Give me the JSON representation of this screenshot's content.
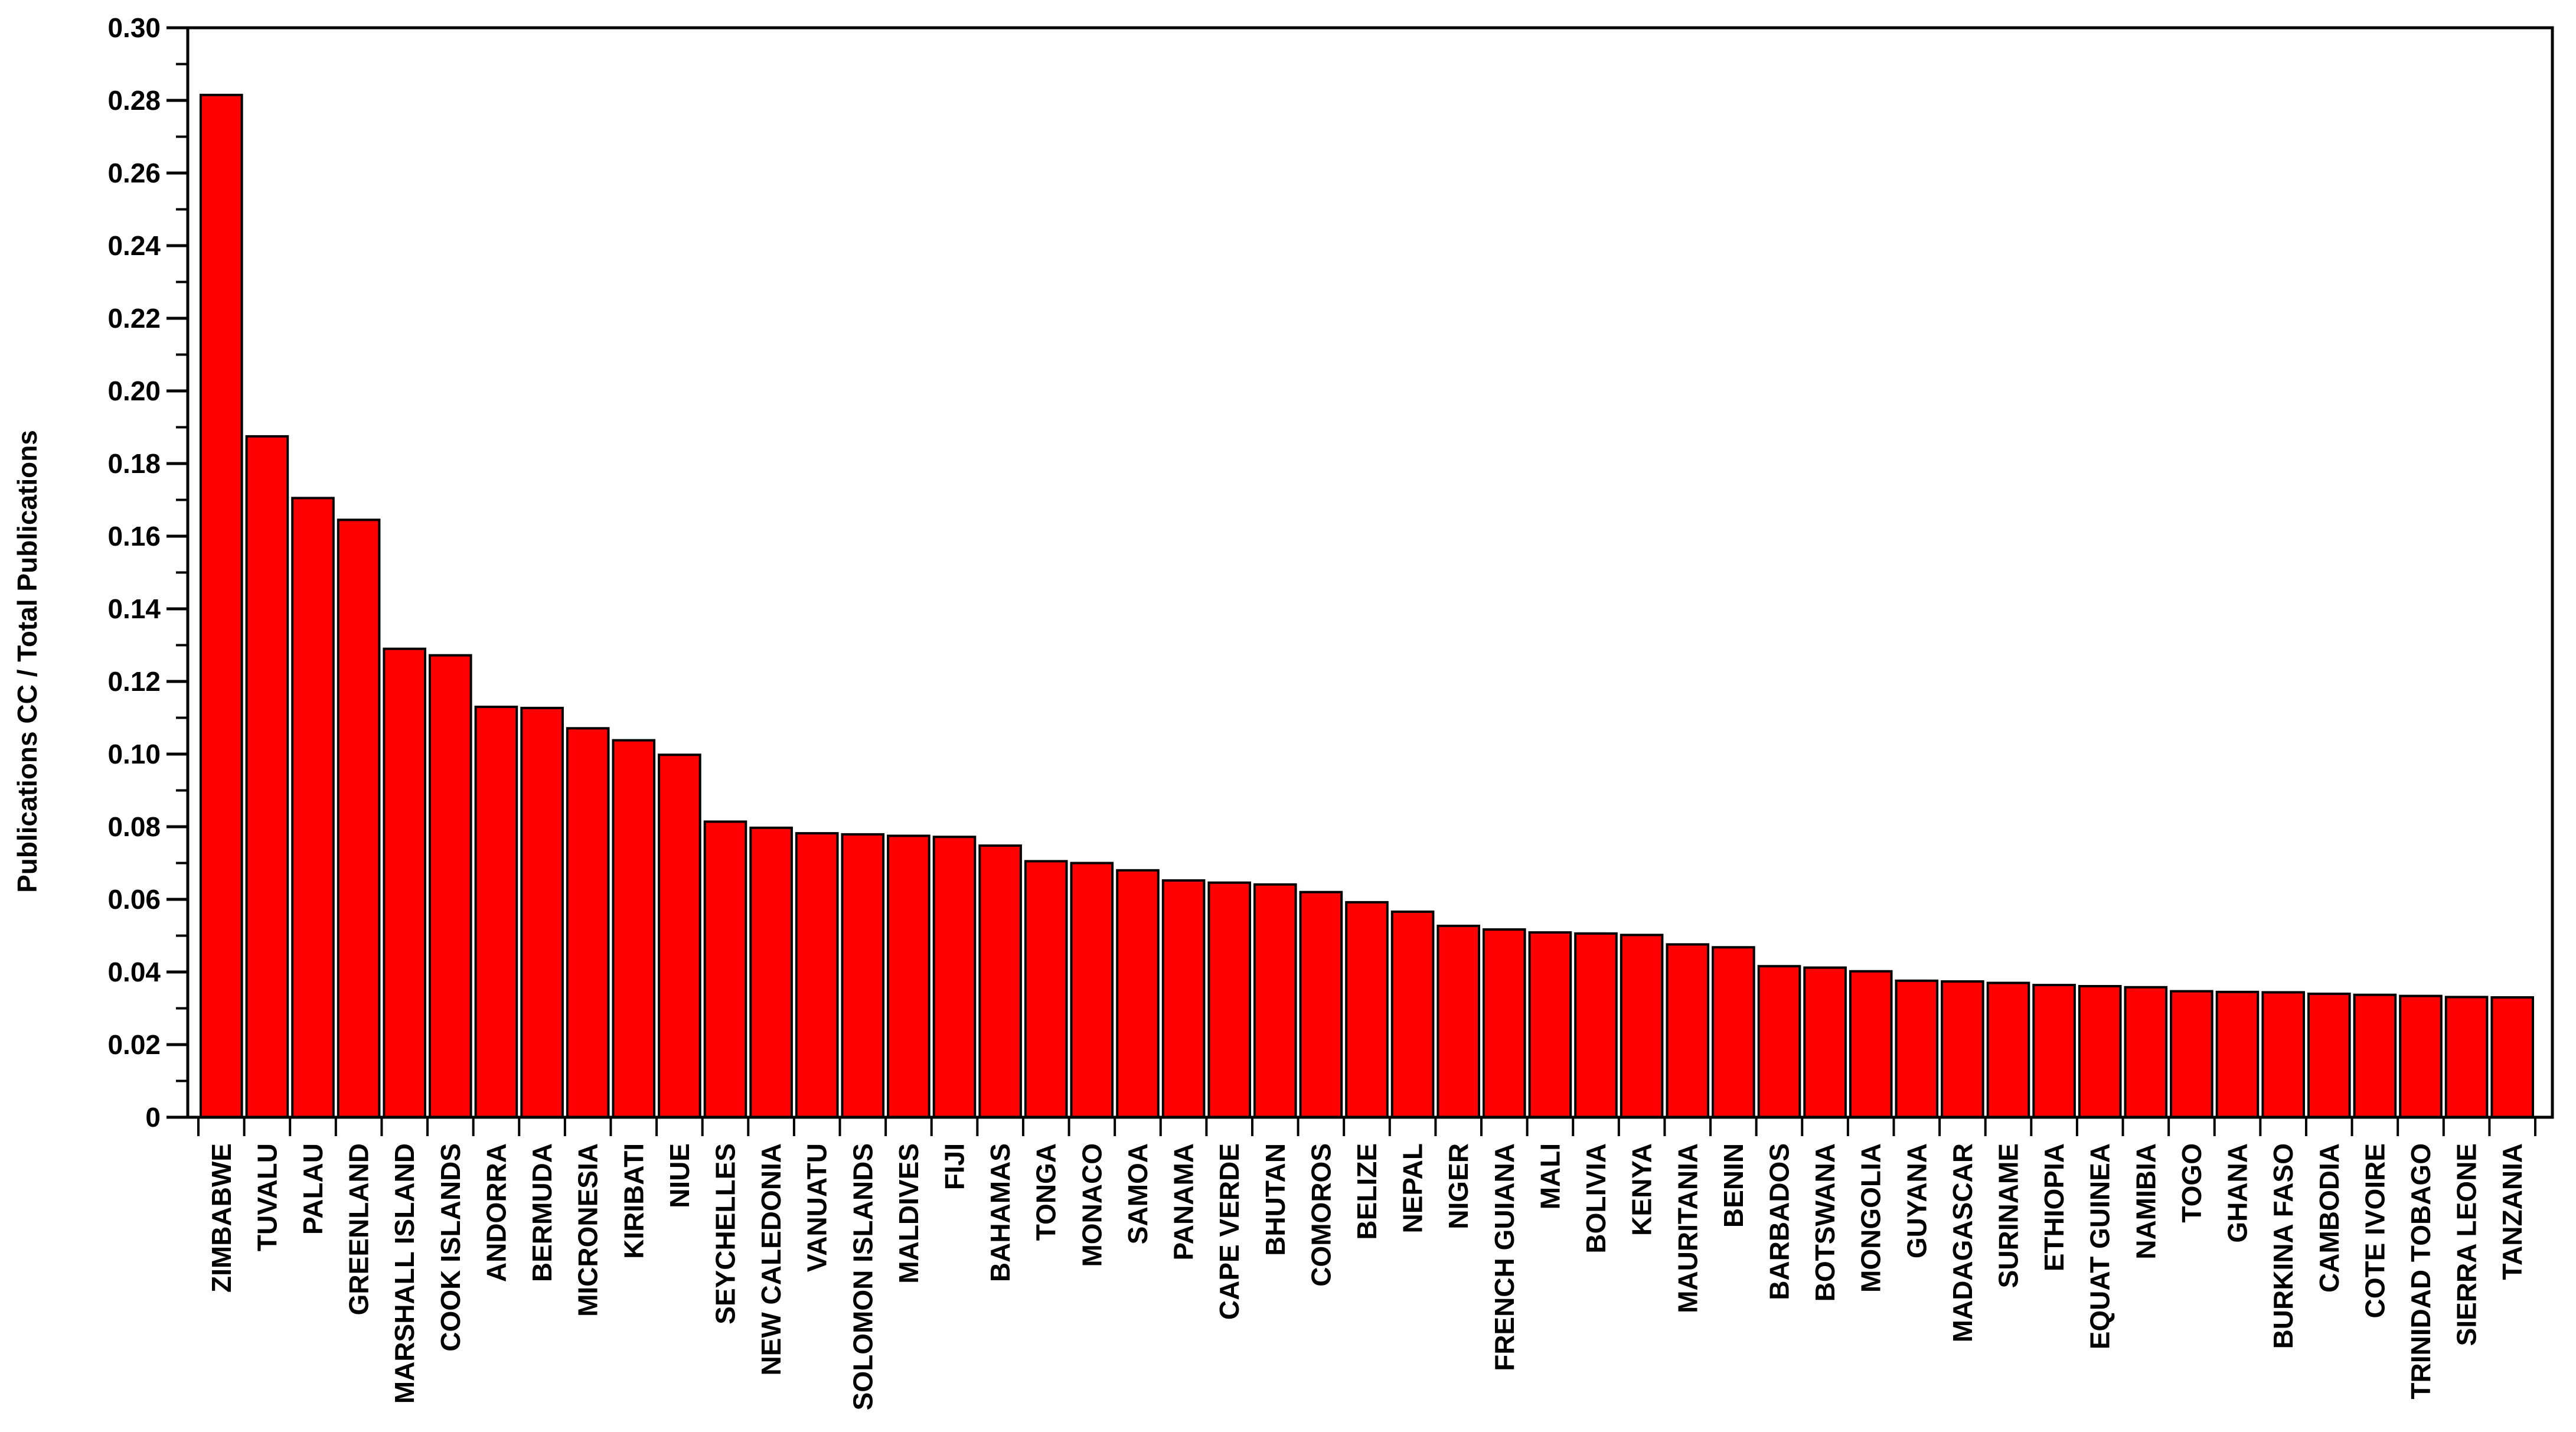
{
  "page": {
    "background_color": "#FFFFFF"
  },
  "chart_data": {
    "type": "bar",
    "title": "",
    "xlabel": "",
    "ylabel": "Publications CC / Total Publications",
    "ylim": [
      0,
      0.3
    ],
    "grid": false,
    "legend": null,
    "bar_color": "#FF0000",
    "bar_edge_color": "#000000",
    "axis_color": "#000000",
    "yticks": {
      "major_step": 0.02,
      "minor_step": 0.01,
      "labels": [
        "0",
        "0.02",
        "0.04",
        "0.06",
        "0.08",
        "0.10",
        "0.12",
        "0.14",
        "0.16",
        "0.18",
        "0.20",
        "0.22",
        "0.24",
        "0.26",
        "0.28",
        "0.30"
      ]
    },
    "categories": [
      "ZIMBABWE",
      "TUVALU",
      "PALAU",
      "GREENLAND",
      "MARSHALL ISLAND",
      "COOK ISLANDS",
      "ANDORRA",
      "BERMUDA",
      "MICRONESIA",
      "KIRIBATI",
      "NIUE",
      "SEYCHELLES",
      "NEW CALEDONIA",
      "VANUATU",
      "SOLOMON ISLANDS",
      "MALDIVES",
      "FIJI",
      "BAHAMAS",
      "TONGA",
      "MONACO",
      "SAMOA",
      "PANAMA",
      "CAPE VERDE",
      "BHUTAN",
      "COMOROS",
      "BELIZE",
      "NEPAL",
      "NIGER",
      "FRENCH GUIANA",
      "MALI",
      "BOLIVIA",
      "KENYA",
      "MAURITANIA",
      "BENIN",
      "BARBADOS",
      "BOTSWANA",
      "MONGOLIA",
      "GUYANA",
      "MADAGASCAR",
      "SURINAME",
      "ETHIOPIA",
      "EQUAT GUINEA",
      "NAMIBIA",
      "TOGO",
      "GHANA",
      "BURKINA FASO",
      "CAMBODIA",
      "COTE IVOIRE",
      "TRINIDAD TOBAGO",
      "SIERRA LEONE",
      "TANZANIA"
    ],
    "values": [
      0.2815,
      0.1875,
      0.1705,
      0.1645,
      0.129,
      0.1272,
      0.113,
      0.1127,
      0.1071,
      0.1038,
      0.0998,
      0.0814,
      0.0797,
      0.0782,
      0.0779,
      0.0775,
      0.0772,
      0.0748,
      0.0705,
      0.07,
      0.068,
      0.0652,
      0.0646,
      0.0641,
      0.062,
      0.0592,
      0.0566,
      0.0527,
      0.0517,
      0.0509,
      0.0506,
      0.0502,
      0.0476,
      0.0468,
      0.0416,
      0.0412,
      0.0402,
      0.0376,
      0.0374,
      0.037,
      0.0364,
      0.0361,
      0.0358,
      0.0347,
      0.0345,
      0.0344,
      0.034,
      0.0337,
      0.0334,
      0.0331,
      0.033
    ]
  }
}
